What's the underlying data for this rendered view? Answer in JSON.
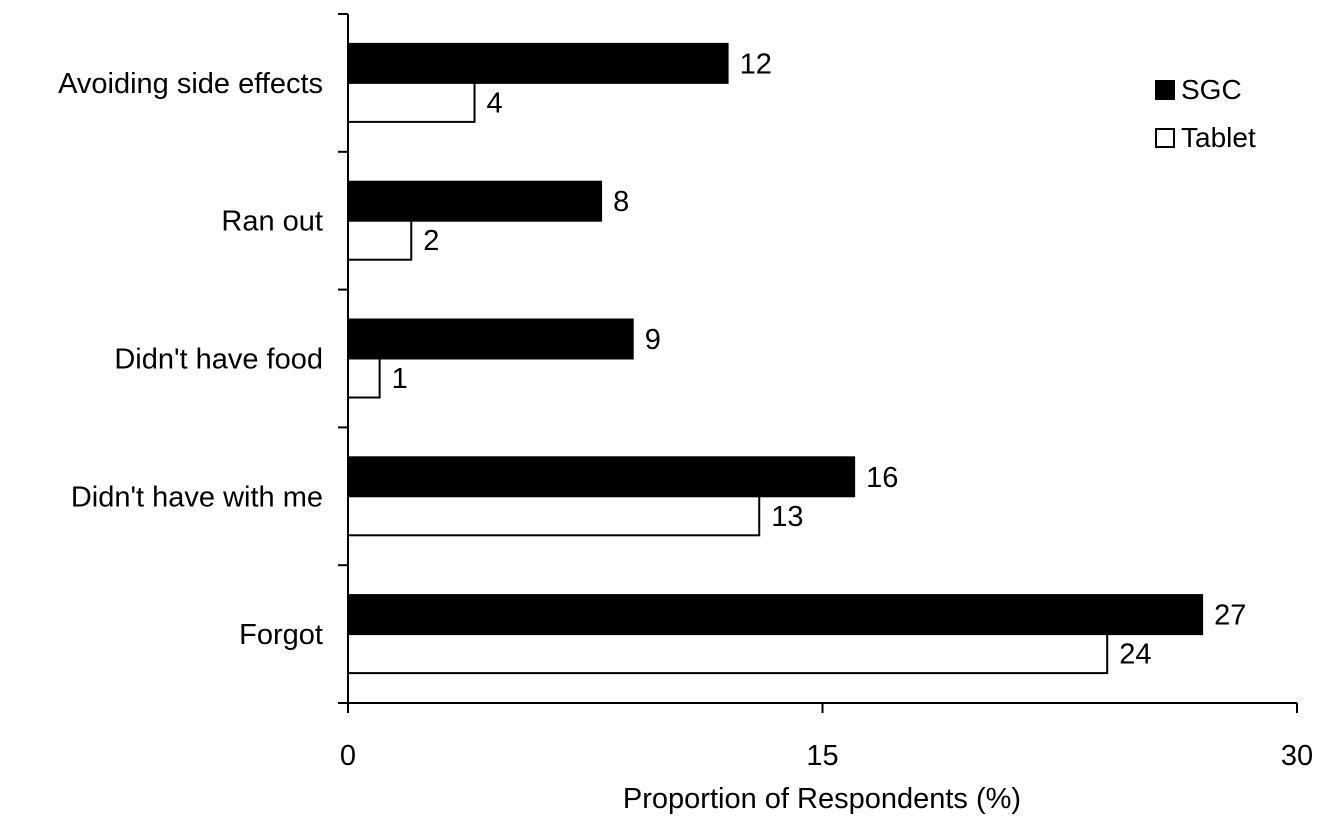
{
  "chart_data": {
    "type": "bar",
    "orientation": "horizontal",
    "categories": [
      "Avoiding side effects",
      "Ran out",
      "Didn't have food",
      "Didn't have with me",
      "Forgot"
    ],
    "series": [
      {
        "name": "SGC",
        "values": [
          12,
          8,
          9,
          16,
          27
        ],
        "color": "#000000"
      },
      {
        "name": "Tablet",
        "values": [
          4,
          2,
          1,
          13,
          24
        ],
        "color": "#ffffff"
      }
    ],
    "data_labels": {
      "SGC": [
        "12",
        "8",
        "9",
        "16",
        "27"
      ],
      "Tablet": [
        "4",
        "2",
        "1",
        "13",
        "24"
      ]
    },
    "xlabel": "Proportion of Respondents (%)",
    "ylabel": "",
    "xlim": [
      0,
      30
    ],
    "x_ticks": [
      0,
      15,
      30
    ],
    "x_tick_labels": [
      "0",
      "15",
      "30"
    ],
    "grid": false,
    "legend_position": "top-right"
  }
}
